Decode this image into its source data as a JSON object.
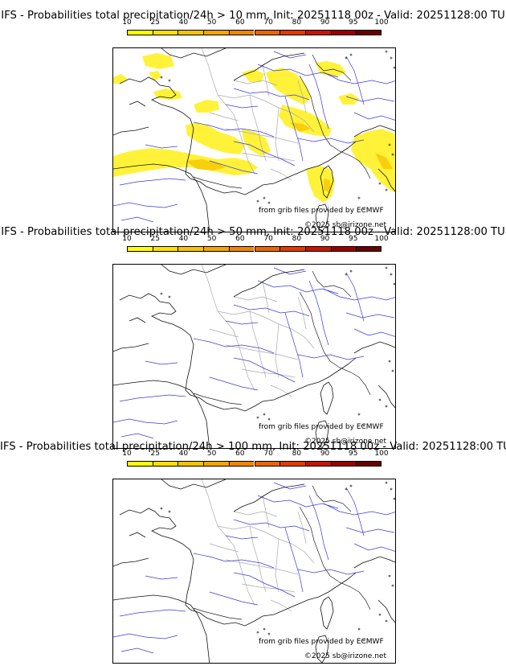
{
  "colorbar": {
    "ticks": [
      "10",
      "25",
      "40",
      "50",
      "60",
      "70",
      "80",
      "90",
      "95",
      "100"
    ],
    "colors": [
      "#ffff00",
      "#ffe000",
      "#f7c400",
      "#f5a500",
      "#f08600",
      "#ec6600",
      "#e23a00",
      "#c81400",
      "#9c0000",
      "#6a0000"
    ]
  },
  "panels": [
    {
      "title": "IFS - Probabilities total precipitation/24h > 10 mm, Init: 20251118 00z - Valid: 20251128:00 TU",
      "credit_source": "from grib files provided by ECMWF",
      "credit_copyright": "©2025 sb@irizone.net",
      "threshold_mm": 10,
      "has_precip_shading": true
    },
    {
      "title": "IFS - Probabilities total precipitation/24h > 50 mm, Init: 20251118 00z - Valid: 20251128:00 TU",
      "credit_source": "from grib files provided by ECMWF",
      "credit_copyright": "©2025 sb@irizone.net",
      "threshold_mm": 50,
      "has_precip_shading": false
    },
    {
      "title": "IFS - Probabilities total precipitation/24h > 100 mm, Init: 20251118 00z - Valid: 20251128:00 TU",
      "credit_source": "from grib files provided by ECMWF",
      "credit_copyright": "©2025 sb@irizone.net",
      "threshold_mm": 100,
      "has_precip_shading": false
    }
  ]
}
